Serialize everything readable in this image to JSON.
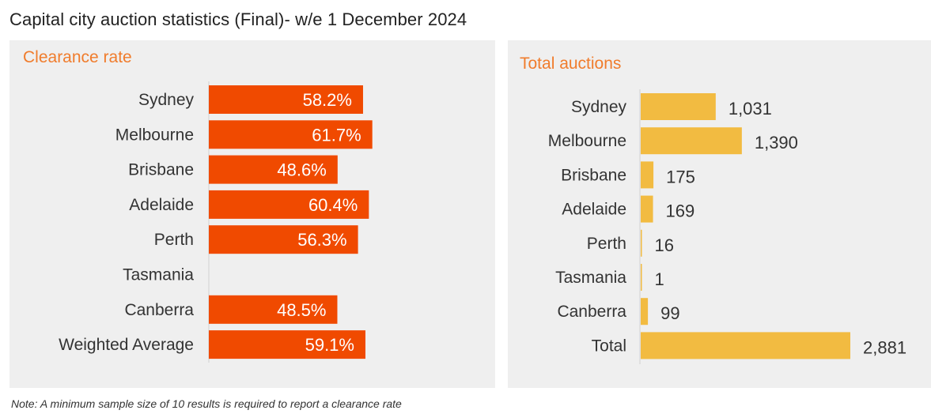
{
  "title": "Capital city auction statistics (Final)- w/e 1 December 2024",
  "note": "Note: A minimum sample size of 10 results is required to report a clearance rate",
  "colors": {
    "clearance_bar": "#f04a00",
    "auctions_bar": "#f2bb41",
    "panel_bg": "#efefef",
    "heading": "#f07c2c"
  },
  "chart_data": [
    {
      "type": "bar",
      "orientation": "horizontal",
      "title": "Clearance rate",
      "categories": [
        "Sydney",
        "Melbourne",
        "Brisbane",
        "Adelaide",
        "Perth",
        "Tasmania",
        "Canberra",
        "Weighted Average"
      ],
      "values": [
        58.2,
        61.7,
        48.6,
        60.4,
        56.3,
        null,
        48.5,
        59.1
      ],
      "labels": [
        "58.2%",
        "61.7%",
        "48.6%",
        "60.4%",
        "56.3%",
        "",
        "48.5%",
        "59.1%"
      ],
      "unit": "%",
      "grid": false,
      "legend": "none"
    },
    {
      "type": "bar",
      "orientation": "horizontal",
      "title": "Total auctions",
      "categories": [
        "Sydney",
        "Melbourne",
        "Brisbane",
        "Adelaide",
        "Perth",
        "Tasmania",
        "Canberra",
        "Total"
      ],
      "values": [
        1031,
        1390,
        175,
        169,
        16,
        1,
        99,
        2881
      ],
      "labels": [
        "1,031",
        "1,390",
        "175",
        "169",
        "16",
        "1",
        "99",
        "2,881"
      ],
      "grid": false,
      "legend": "none"
    }
  ]
}
